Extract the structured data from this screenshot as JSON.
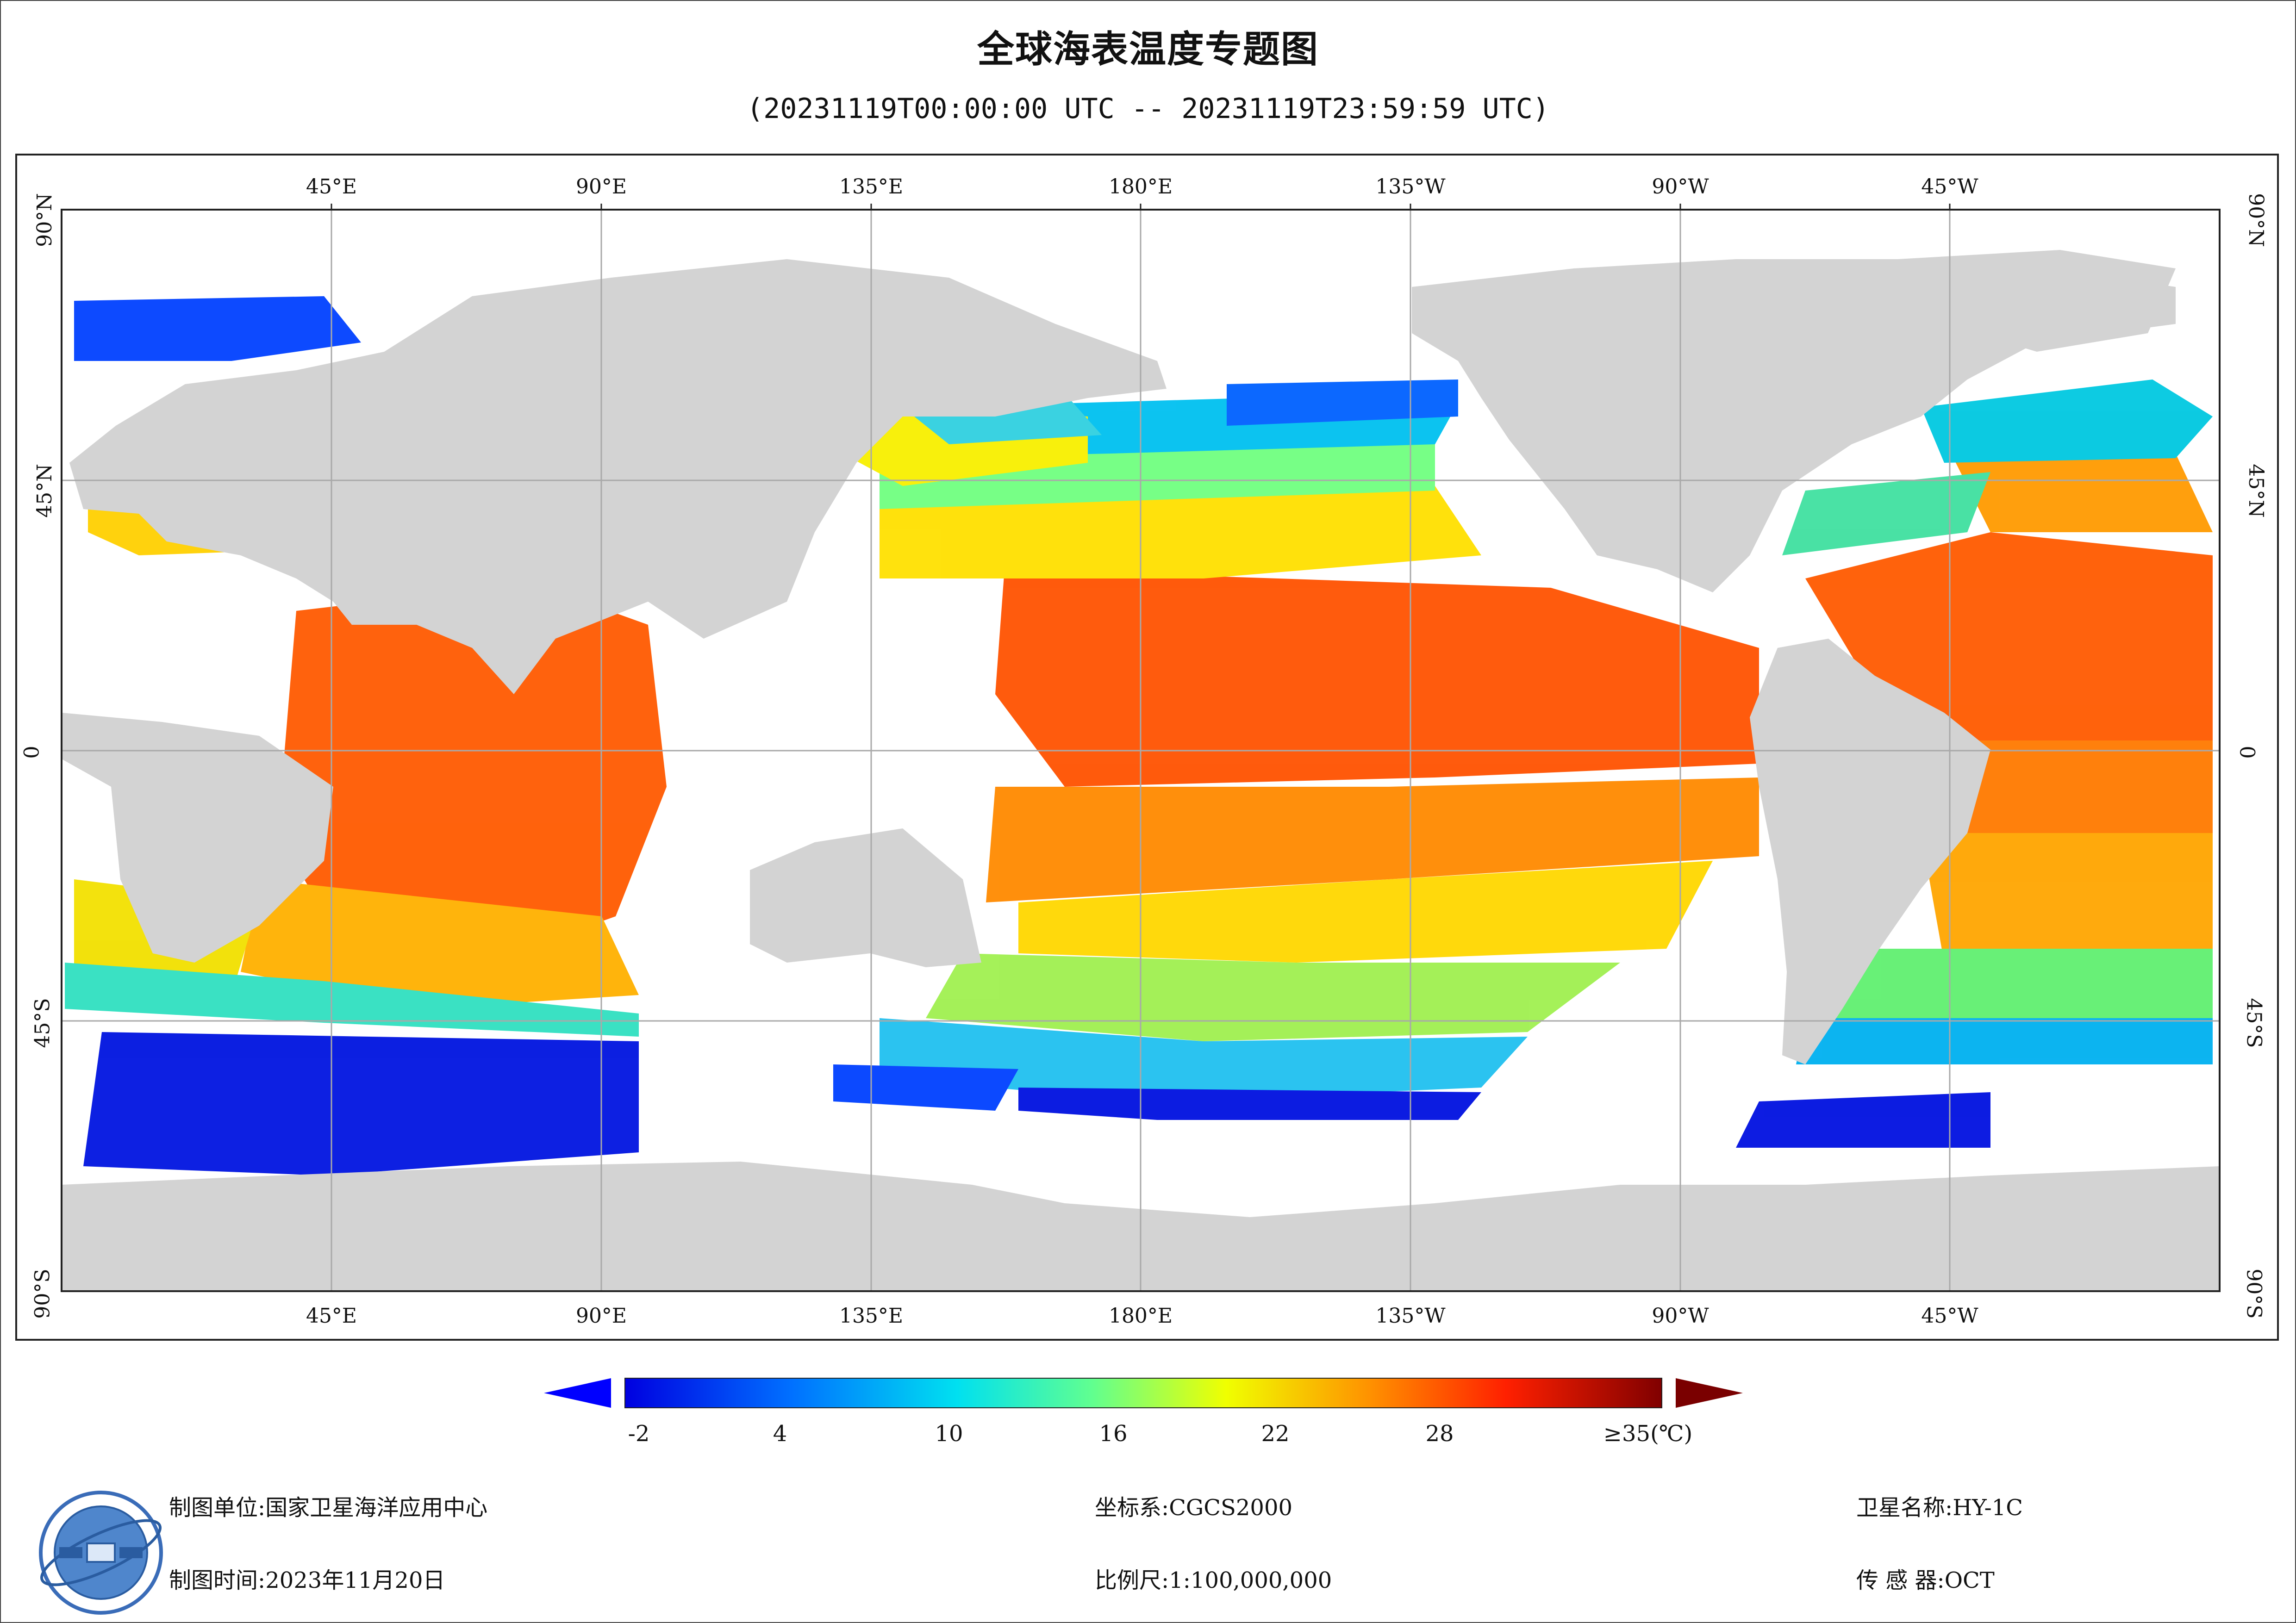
{
  "header": {
    "title": "全球海表温度专题图",
    "subtitle": "(20231119T00:00:00 UTC -- 20231119T23:59:59 UTC)"
  },
  "map": {
    "lon_labels": [
      "45°E",
      "90°E",
      "135°E",
      "180°E",
      "135°W",
      "90°W",
      "45°W"
    ],
    "lat_labels": [
      "90°N",
      "45°N",
      "0°",
      "45°S",
      "90°S"
    ],
    "lat_labels_text": [
      "90°N",
      "45°N",
      "0",
      "45°S",
      "90°S"
    ],
    "central_meridian": "180°E",
    "colors": {
      "land": "#d3d3d3",
      "cloud": "#ffffff",
      "grid": "#a9a9a9"
    }
  },
  "colorbar": {
    "ticks": [
      "-2",
      "4",
      "10",
      "16",
      "22",
      "28",
      "≥35(℃)"
    ],
    "min": -2,
    "max": 35,
    "unit": "℃",
    "low_arrow_color": "#0000ff",
    "high_arrow_color": "#7a0000"
  },
  "footer": {
    "unit_label": "制图单位:",
    "unit_value": "国家卫星海洋应用中心",
    "time_label": "制图时间:",
    "time_value": "2023年11月20日",
    "crs_label": "坐标系:",
    "crs_value": "CGCS2000",
    "scale_label": "比例尺:",
    "scale_value": "1:100,000,000",
    "satellite_label": "卫星名称:",
    "satellite_value": "HY-1C",
    "sensor_label": "传 感 器:",
    "sensor_value": "OCT"
  }
}
